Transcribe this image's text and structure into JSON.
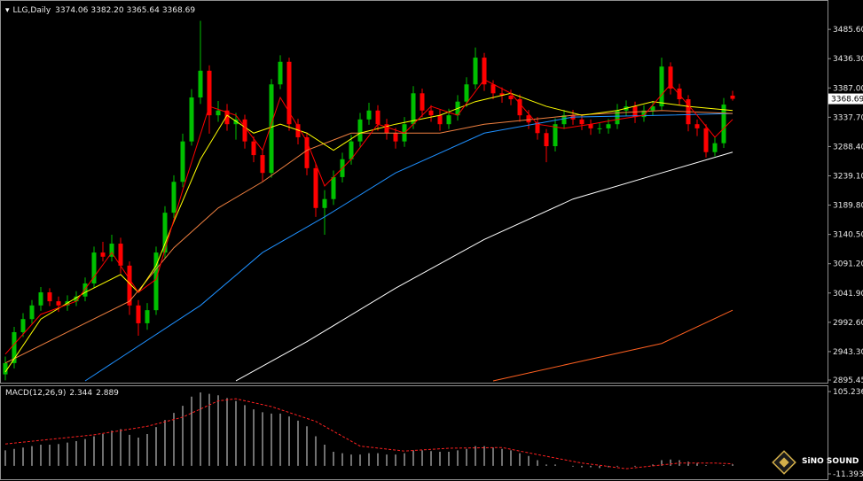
{
  "chart_data": [
    {
      "type": "candlestick",
      "title": "LLG,Daily",
      "legend_values": [
        "3374.06",
        "3382.20",
        "3365.64",
        "3368.69"
      ],
      "up_color": "#00c000",
      "down_color": "#ff0000",
      "open": [
        2905,
        2924,
        2976,
        2998,
        3021,
        3043,
        3028,
        3021,
        3028,
        3036,
        3058,
        3110,
        3103,
        3125,
        3088,
        3021,
        2991,
        3013,
        3110,
        3177,
        3229,
        3297,
        3371,
        3416,
        3341,
        3349,
        3326,
        3334,
        3297,
        3274,
        3244,
        3393,
        3431,
        3326,
        3304,
        3252,
        3185,
        3200,
        3237,
        3267,
        3297,
        3334,
        3349,
        3326,
        3311,
        3297,
        3326,
        3378,
        3349,
        3341,
        3326,
        3341,
        3364,
        3393,
        3438,
        3393,
        3378,
        3374,
        3368,
        3341,
        3329,
        3311,
        3289,
        3326,
        3341,
        3334,
        3326,
        3319,
        3319,
        3326,
        3349,
        3356,
        3338,
        3349,
        3356,
        3423,
        3386,
        3368,
        3326,
        3319,
        3279,
        3294,
        3374.06
      ],
      "high": [
        2935,
        2985,
        3008,
        3030,
        3052,
        3050,
        3036,
        3038,
        3045,
        3068,
        3120,
        3128,
        3140,
        3135,
        3095,
        3030,
        3025,
        3120,
        3188,
        3240,
        3310,
        3385,
        3500,
        3425,
        3365,
        3360,
        3345,
        3342,
        3305,
        3282,
        3402,
        3442,
        3438,
        3335,
        3312,
        3260,
        3215,
        3248,
        3278,
        3308,
        3345,
        3362,
        3358,
        3335,
        3320,
        3338,
        3390,
        3386,
        3358,
        3350,
        3352,
        3375,
        3405,
        3455,
        3446,
        3400,
        3388,
        3384,
        3376,
        3350,
        3338,
        3318,
        3336,
        3350,
        3350,
        3342,
        3334,
        3328,
        3335,
        3360,
        3366,
        3364,
        3358,
        3365,
        3438,
        3430,
        3394,
        3375,
        3334,
        3326,
        3305,
        3370,
        3382.2
      ],
      "low": [
        2895,
        2915,
        2968,
        2990,
        3012,
        3020,
        3010,
        3012,
        3020,
        3028,
        3050,
        3095,
        3095,
        3075,
        3005,
        2970,
        2980,
        3005,
        3100,
        3168,
        3220,
        3290,
        3360,
        3310,
        3330,
        3315,
        3300,
        3285,
        3262,
        3230,
        3236,
        3385,
        3315,
        3292,
        3240,
        3170,
        3140,
        3190,
        3228,
        3258,
        3288,
        3325,
        3315,
        3300,
        3285,
        3288,
        3318,
        3338,
        3330,
        3315,
        3318,
        3332,
        3355,
        3385,
        3382,
        3368,
        3362,
        3358,
        3330,
        3318,
        3300,
        3262,
        3280,
        3318,
        3325,
        3316,
        3308,
        3310,
        3310,
        3318,
        3340,
        3328,
        3330,
        3340,
        3350,
        3376,
        3358,
        3314,
        3306,
        3270,
        3272,
        3286,
        3365.64
      ],
      "close": [
        2924,
        2976,
        2998,
        3021,
        3043,
        3028,
        3021,
        3028,
        3036,
        3058,
        3110,
        3103,
        3125,
        3088,
        3021,
        2991,
        3013,
        3110,
        3177,
        3229,
        3297,
        3371,
        3416,
        3341,
        3349,
        3326,
        3334,
        3297,
        3274,
        3244,
        3393,
        3431,
        3326,
        3304,
        3252,
        3185,
        3200,
        3237,
        3267,
        3297,
        3334,
        3349,
        3326,
        3311,
        3297,
        3326,
        3378,
        3349,
        3341,
        3326,
        3341,
        3364,
        3393,
        3438,
        3393,
        3378,
        3374,
        3368,
        3341,
        3329,
        3311,
        3289,
        3326,
        3341,
        3334,
        3326,
        3319,
        3319,
        3326,
        3349,
        3356,
        3338,
        3349,
        3356,
        3423,
        3386,
        3368,
        3326,
        3319,
        3279,
        3294,
        3359,
        3368.69
      ],
      "ylim": [
        2891,
        3535
      ],
      "yticks": [
        {
          "value": 3485.6,
          "label": "3485.60"
        },
        {
          "value": 3436.3,
          "label": "3436.30"
        },
        {
          "value": 3387,
          "label": "3387.00"
        },
        {
          "value": 3337.7,
          "label": "3337.70"
        },
        {
          "value": 3288.4,
          "label": "3288.40"
        },
        {
          "value": 3239.1,
          "label": "3239.10"
        },
        {
          "value": 3189.8,
          "label": "3189.80"
        },
        {
          "value": 3140.5,
          "label": "3140.50"
        },
        {
          "value": 3091.2,
          "label": "3091.20"
        },
        {
          "value": 3041.9,
          "label": "3041.90"
        },
        {
          "value": 2992.6,
          "label": "2992.60"
        },
        {
          "value": 2943.3,
          "label": "2943.30"
        },
        2895.45
      ],
      "overlays": [
        {
          "color": "#ffffff",
          "x": [
            26,
            34,
            44,
            54,
            64,
            74,
            82
          ],
          "values": [
            2894,
            2960,
            3050,
            3132,
            3200,
            3244,
            3279
          ]
        },
        {
          "color": "#ff6020",
          "x": [
            55,
            64,
            74,
            82
          ],
          "values": [
            2894,
            2924,
            2957,
            3013
          ]
        },
        {
          "color": "#1e90ff",
          "x": [
            9,
            22,
            29,
            36,
            44,
            54,
            64,
            74,
            82
          ],
          "values": [
            2894,
            3021,
            3110,
            3170,
            3244,
            3311,
            3338,
            3341,
            3344
          ]
        },
        {
          "color": "#f08040",
          "x": [
            0,
            9,
            14,
            19,
            24,
            29,
            34,
            39,
            44,
            49,
            54,
            64,
            74,
            82
          ],
          "values": [
            2924,
            2991,
            3028,
            3118,
            3185,
            3229,
            3282,
            3311,
            3311,
            3311,
            3326,
            3341,
            3349,
            3344
          ]
        },
        {
          "color": "#ffff00",
          "x": [
            0,
            4,
            9,
            13,
            15,
            17,
            19,
            22,
            25,
            28,
            31,
            34,
            37,
            40,
            44,
            49,
            53,
            57,
            61,
            65,
            69,
            73,
            77,
            82
          ],
          "values": [
            2909,
            2998,
            3043,
            3073,
            3043,
            3088,
            3162,
            3267,
            3341,
            3311,
            3326,
            3311,
            3282,
            3311,
            3326,
            3341,
            3364,
            3378,
            3356,
            3341,
            3349,
            3364,
            3356,
            3349
          ]
        },
        {
          "color": "#ff0000",
          "x": [
            0,
            4,
            8,
            12,
            15,
            17,
            20,
            23,
            26,
            29,
            31,
            34,
            36,
            39,
            42,
            45,
            48,
            51,
            54,
            57,
            60,
            63,
            66,
            69,
            72,
            75,
            78,
            80,
            82
          ],
          "values": [
            2939,
            3006,
            3028,
            3110,
            3043,
            3065,
            3215,
            3356,
            3341,
            3282,
            3371,
            3297,
            3222,
            3267,
            3326,
            3311,
            3356,
            3341,
            3401,
            3378,
            3326,
            3319,
            3326,
            3334,
            3341,
            3393,
            3341,
            3304,
            3334
          ]
        }
      ]
    },
    {
      "type": "macd",
      "title": "MACD(12,26,9)",
      "ylim": [
        -18.9,
        112.8
      ],
      "yticks": [
        105.236,
        -11.393
      ],
      "series": [
        {
          "type": "bar",
          "color": "#e0e0e0",
          "values": [
            22,
            24,
            26,
            28,
            30,
            30,
            31,
            33,
            35,
            38,
            42,
            45,
            50,
            52,
            44,
            40,
            45,
            55,
            65,
            75,
            85,
            98,
            104,
            102,
            100,
            96,
            92,
            86,
            80,
            76,
            74,
            74,
            70,
            64,
            56,
            42,
            30,
            20,
            18,
            16,
            16,
            18,
            18,
            16,
            16,
            18,
            22,
            22,
            21,
            20,
            20,
            22,
            24,
            28,
            28,
            26,
            24,
            22,
            18,
            14,
            8,
            2,
            2,
            0,
            -1,
            -2,
            -2,
            -3,
            -2,
            -1,
            0,
            -1,
            0,
            2,
            8,
            9,
            8,
            6,
            4,
            1,
            0,
            1,
            2.344
          ]
        },
        {
          "type": "line",
          "color": "#ff2020",
          "dash": true,
          "x": [
            0,
            10,
            16,
            20,
            24,
            26,
            30,
            35,
            40,
            45,
            50,
            56,
            60,
            65,
            70,
            76,
            80,
            82
          ],
          "values": [
            31,
            44,
            56,
            69,
            92,
            95,
            84,
            63,
            28,
            21,
            25,
            26,
            16,
            4,
            -4,
            4,
            4,
            2.889
          ]
        }
      ]
    }
  ],
  "watermark": "SiNO SOUND"
}
